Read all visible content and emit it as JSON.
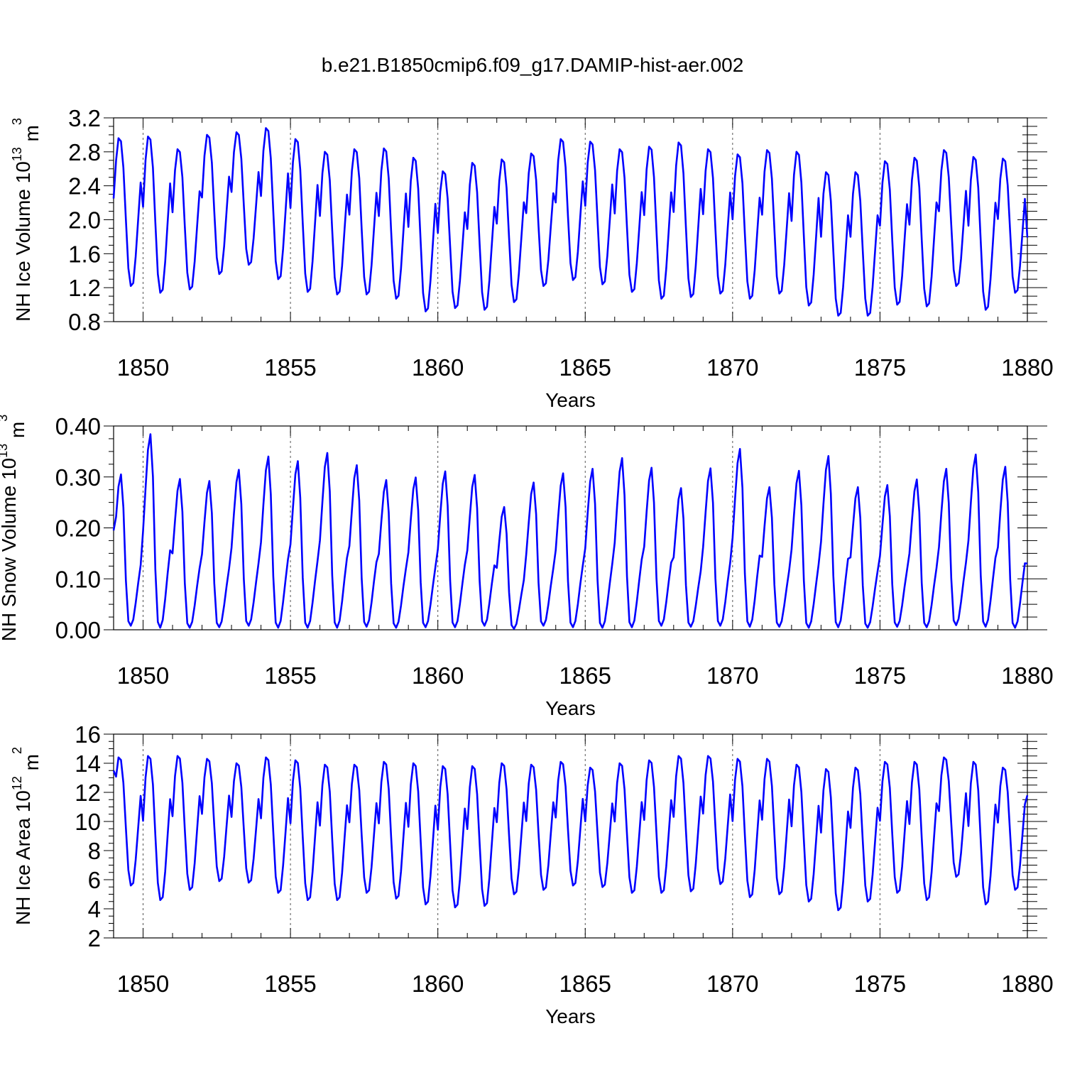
{
  "title": "b.e21.B1850cmip6.f09_g17.DAMIP-hist-aer.002",
  "colors": {
    "series": "#0000ff",
    "axis": "#000000",
    "grid": "#555555"
  },
  "chart_data": [
    {
      "type": "line",
      "title": "b.e21.B1850cmip6.f09_g17.DAMIP-hist-aer.002",
      "xlabel": "Years",
      "ylabel_main": "NH Ice Volume 10",
      "ylabel_sup": "13",
      "ylabel_unit": " m",
      "ylabel_unit_sup": "3",
      "xlim": [
        1849,
        1880
      ],
      "ylim": [
        0.8,
        3.2
      ],
      "x_ticks": [
        "1850",
        "1855",
        "1860",
        "1865",
        "1870",
        "1875",
        "1880"
      ],
      "y_ticks": [
        "0.8",
        "1.2",
        "1.6",
        "2.0",
        "2.4",
        "2.8",
        "3.2"
      ],
      "series": [
        {
          "name": "NH Ice Volume",
          "start_year": 1849.0,
          "step_months": 1,
          "annual_max": [
            2.96,
            2.98,
            2.83,
            3.0,
            3.03,
            3.08,
            2.95,
            2.8,
            2.83,
            2.84,
            2.73,
            2.57,
            2.67,
            2.71,
            2.78,
            2.95,
            2.92,
            2.83,
            2.86,
            2.91,
            2.83,
            2.77,
            2.82,
            2.8,
            2.56,
            2.56,
            2.69,
            2.73,
            2.82,
            2.74,
            2.72
          ],
          "annual_min": [
            1.22,
            1.14,
            1.18,
            1.36,
            1.47,
            1.3,
            1.15,
            1.12,
            1.12,
            1.07,
            0.92,
            0.96,
            0.94,
            1.03,
            1.22,
            1.29,
            1.24,
            1.15,
            1.07,
            1.09,
            1.13,
            1.07,
            1.13,
            0.99,
            0.87,
            0.87,
            1.0,
            0.98,
            1.22,
            0.94,
            1.14
          ],
          "jan_start": 2.25,
          "end_value": 1.79
        }
      ]
    },
    {
      "type": "line",
      "xlabel": "Years",
      "ylabel_main": "NH Snow Volume 10",
      "ylabel_sup": "13",
      "ylabel_unit": " m",
      "ylabel_unit_sup": "3",
      "xlim": [
        1849,
        1880
      ],
      "ylim": [
        0.0,
        0.4
      ],
      "x_ticks": [
        "1850",
        "1855",
        "1860",
        "1865",
        "1870",
        "1875",
        "1880"
      ],
      "y_ticks": [
        "0.00",
        "0.10",
        "0.20",
        "0.30",
        "0.40"
      ],
      "series": [
        {
          "name": "NH Snow Volume",
          "start_year": 1849.0,
          "step_months": 1,
          "annual_max": [
            0.305,
            0.384,
            0.296,
            0.292,
            0.314,
            0.34,
            0.331,
            0.347,
            0.323,
            0.294,
            0.299,
            0.311,
            0.304,
            0.241,
            0.289,
            0.307,
            0.316,
            0.337,
            0.318,
            0.278,
            0.317,
            0.355,
            0.28,
            0.312,
            0.341,
            0.28,
            0.284,
            0.295,
            0.316,
            0.344,
            0.32
          ],
          "annual_min": [
            0.008,
            0.004,
            0.004,
            0.005,
            0.008,
            0.004,
            0.004,
            0.004,
            0.006,
            0.004,
            0.005,
            0.005,
            0.008,
            0.002,
            0.008,
            0.005,
            0.004,
            0.005,
            0.008,
            0.006,
            0.008,
            0.006,
            0.006,
            0.004,
            0.005,
            0.004,
            0.006,
            0.005,
            0.009,
            0.006,
            0.004
          ],
          "jan_start": 0.195,
          "end_value": 0.13
        }
      ]
    },
    {
      "type": "line",
      "xlabel": "Years",
      "ylabel_main": "NH Ice Area 10",
      "ylabel_sup": "12",
      "ylabel_unit": " m",
      "ylabel_unit_sup": "2",
      "xlim": [
        1849,
        1880
      ],
      "ylim": [
        2,
        16
      ],
      "x_ticks": [
        "1850",
        "1855",
        "1860",
        "1865",
        "1870",
        "1875",
        "1880"
      ],
      "y_ticks": [
        "2",
        "4",
        "6",
        "8",
        "10",
        "12",
        "14",
        "16"
      ],
      "series": [
        {
          "name": "NH Ice Area",
          "start_year": 1849.0,
          "step_months": 1,
          "annual_max": [
            14.4,
            14.5,
            14.5,
            14.3,
            14.0,
            14.4,
            14.2,
            13.9,
            13.9,
            14.1,
            14.0,
            13.8,
            13.8,
            14.0,
            13.9,
            14.1,
            13.7,
            14.0,
            14.2,
            14.5,
            14.5,
            14.3,
            14.3,
            13.9,
            13.6,
            13.7,
            14.1,
            14.1,
            14.4,
            14.1,
            13.7
          ],
          "annual_min": [
            5.6,
            4.6,
            5.3,
            5.9,
            5.8,
            5.1,
            4.6,
            4.6,
            5.1,
            4.7,
            4.3,
            4.1,
            4.2,
            5.0,
            5.3,
            5.6,
            5.5,
            5.1,
            5.1,
            5.2,
            5.7,
            4.8,
            5.0,
            4.5,
            3.9,
            4.5,
            5.1,
            4.6,
            6.2,
            4.3,
            5.3
          ],
          "jan_start": 13.5,
          "end_value": 11.8
        }
      ]
    }
  ]
}
